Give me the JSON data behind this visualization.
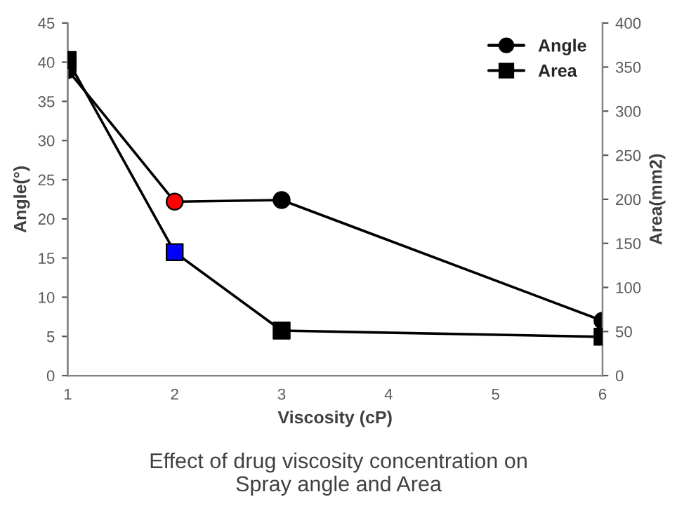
{
  "chart_data": {
    "type": "line",
    "title": "Effect of drug viscosity concentration on\nSpray angle and Area",
    "xlabel": "Viscosity (cP)",
    "ylabel": "Angle(°)",
    "y2label": "Area(mm2)",
    "x": [
      1,
      2,
      3,
      6
    ],
    "series": [
      {
        "name": "Angle",
        "color": "#000000",
        "colors": [
          "#000000",
          "#ff0000",
          "#000000",
          "#000000"
        ],
        "marker": "circle",
        "values": [
          39,
          22.2,
          22.4,
          7
        ]
      },
      {
        "name": "Area",
        "color": "#000000",
        "colors": [
          "#000000",
          "#0000ff",
          "#000000",
          "#000000"
        ],
        "marker": "square",
        "axis": "y2",
        "values": [
          358,
          140,
          51,
          44
        ]
      }
    ],
    "xlim": [
      1,
      6
    ],
    "xticks": [
      1,
      2,
      3,
      4,
      5,
      6
    ],
    "ylim": [
      0,
      45
    ],
    "yticks": [
      0,
      5,
      10,
      15,
      20,
      25,
      30,
      35,
      40,
      45
    ],
    "y2lim": [
      0,
      400
    ],
    "y2ticks": [
      0,
      50,
      100,
      150,
      200,
      250,
      300,
      350,
      400
    ],
    "grid": false,
    "legend": "top right",
    "line_style": "solid"
  }
}
